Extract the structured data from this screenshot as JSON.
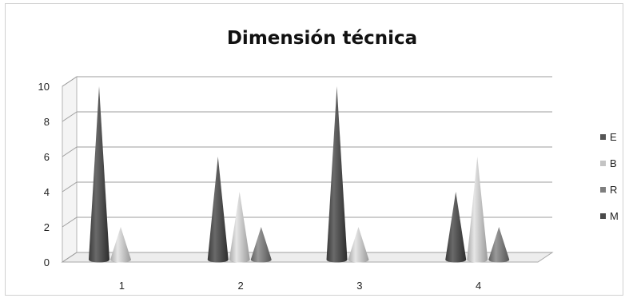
{
  "chart_data": {
    "type": "bar",
    "style": "3d-cone",
    "title": "Dimensión técnica",
    "xlabel": "",
    "ylabel": "",
    "categories": [
      "1",
      "2",
      "3",
      "4"
    ],
    "ylim": [
      0,
      10
    ],
    "yticks": [
      "0",
      "2",
      "4",
      "6",
      "8",
      "10"
    ],
    "grid": true,
    "legend_position": "right",
    "series": [
      {
        "name": "E",
        "values": [
          10,
          6,
          10,
          4
        ],
        "color": "#555555"
      },
      {
        "name": "B",
        "values": [
          2,
          4,
          2,
          6
        ],
        "color": "#c4c4c4"
      },
      {
        "name": "R",
        "values": [
          0,
          2,
          0,
          2
        ],
        "color": "#7e7e7e"
      },
      {
        "name": "M",
        "values": [
          0,
          0,
          0,
          0
        ],
        "color": "#4a4a4a"
      }
    ]
  }
}
